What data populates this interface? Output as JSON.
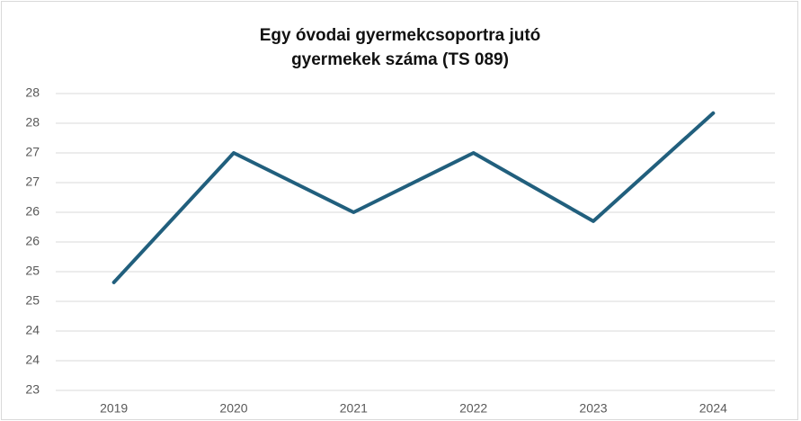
{
  "chart_data": {
    "type": "line",
    "title": "Egy óvodai gyermekcsoportra jutó gyermekek száma (TS 089)",
    "categories": [
      "2019",
      "2020",
      "2021",
      "2022",
      "2023",
      "2024"
    ],
    "series": [
      {
        "name": "Egy óvodai gyermekcsoportra jutó gyermekek száma",
        "color": "#215f7d",
        "values": [
          24.82,
          27.0,
          26.0,
          27.0,
          25.85,
          27.67
        ]
      }
    ],
    "ylim": [
      23,
      28
    ],
    "yticks": [
      23,
      {
        "value": 23.5,
        "label": "24"
      },
      24,
      {
        "value": 24.5,
        "label": "25"
      },
      25,
      {
        "value": 25.5,
        "label": "26"
      },
      26,
      {
        "value": 26.5,
        "label": "27"
      },
      27,
      {
        "value": 27.5,
        "label": "28"
      },
      28
    ],
    "grid": true
  }
}
